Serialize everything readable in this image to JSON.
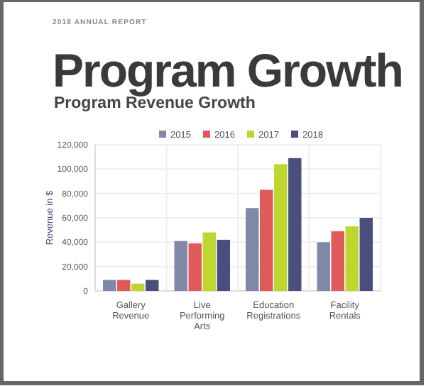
{
  "chart_data": {
    "type": "bar",
    "title": "Program Growth",
    "subtitle": "Program Revenue Growth",
    "annotations": [
      "2018 ANNUAL REPORT"
    ],
    "ylabel": "Revenue in $",
    "categories": [
      "Gallery Revenue",
      "Live Performing Arts",
      "Education Registrations",
      "Facility Rentals"
    ],
    "series": [
      {
        "name": "2015",
        "color": "#8088a8",
        "values": [
          9000,
          41000,
          68000,
          40000
        ]
      },
      {
        "name": "2016",
        "color": "#e05a5a",
        "values": [
          9000,
          39000,
          83000,
          49000
        ]
      },
      {
        "name": "2017",
        "color": "#bdd630",
        "values": [
          6000,
          48000,
          104000,
          53000
        ]
      },
      {
        "name": "2018",
        "color": "#4a4e7e",
        "values": [
          9000,
          42000,
          109000,
          60000
        ]
      }
    ],
    "ylim": [
      0,
      120000
    ],
    "yticks": [
      {
        "value": 0,
        "label": "0"
      },
      {
        "value": 20000,
        "label": "20,000"
      },
      {
        "value": 40000,
        "label": "40,000"
      },
      {
        "value": 60000,
        "label": "60,000"
      },
      {
        "value": 80000,
        "label": "80,000"
      },
      {
        "value": 100000,
        "label": "100,000"
      },
      {
        "value": 120000,
        "label": "120,000"
      }
    ],
    "grid": true,
    "legend": "top"
  }
}
